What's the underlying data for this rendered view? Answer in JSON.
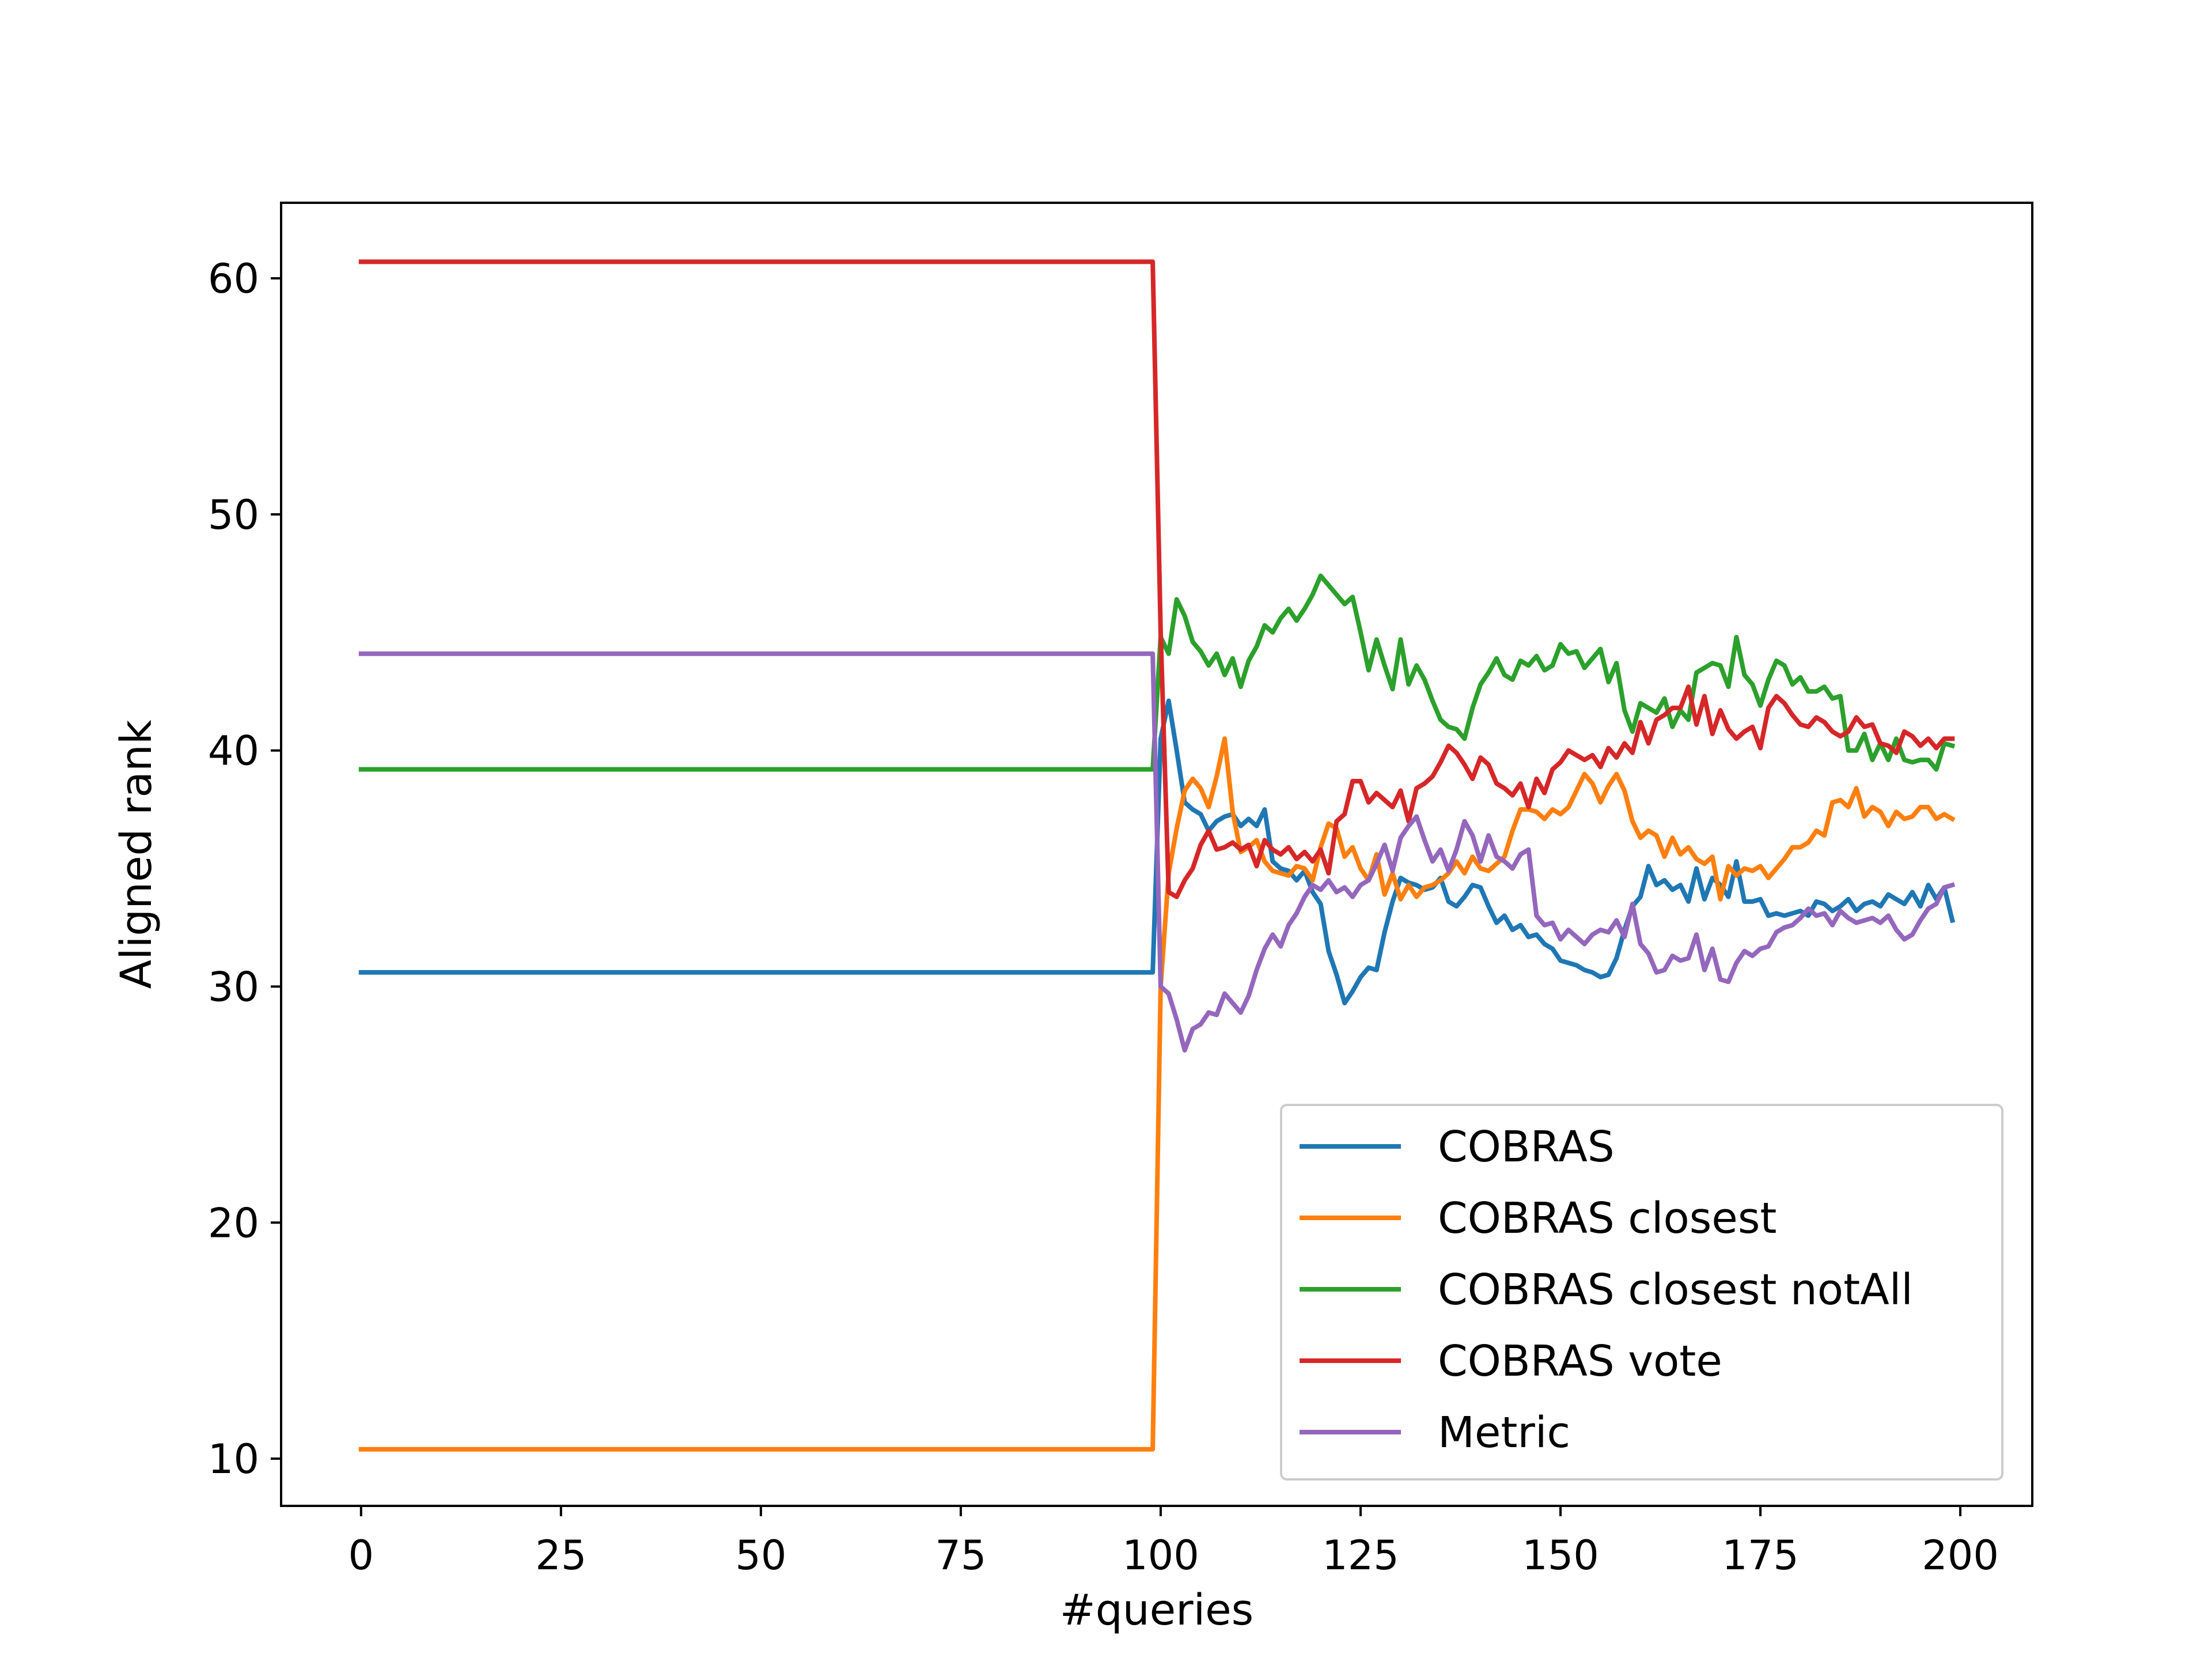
{
  "chart_data": {
    "type": "line",
    "title": "",
    "xlabel": "#queries",
    "ylabel": "Aligned rank",
    "xlim": [
      -10,
      209
    ],
    "ylim": [
      8,
      63.2
    ],
    "xticks": [
      0,
      25,
      50,
      75,
      100,
      125,
      150,
      175,
      200
    ],
    "xtick_labels": [
      "0",
      "25",
      "50",
      "75",
      "100",
      "125",
      "150",
      "175",
      "200"
    ],
    "yticks": [
      10,
      20,
      30,
      40,
      50,
      60
    ],
    "ytick_labels": [
      "10",
      "20",
      "30",
      "40",
      "50",
      "60"
    ],
    "grid": false,
    "legend_position": "lower-right",
    "x": [
      0,
      99,
      100,
      101,
      102,
      103,
      104,
      105,
      106,
      107,
      108,
      109,
      110,
      111,
      112,
      113,
      114,
      115,
      116,
      117,
      118,
      119,
      120,
      121,
      122,
      123,
      124,
      125,
      126,
      127,
      128,
      129,
      130,
      131,
      132,
      133,
      134,
      135,
      136,
      137,
      138,
      139,
      140,
      141,
      142,
      143,
      144,
      145,
      146,
      147,
      148,
      149,
      150,
      151,
      152,
      153,
      154,
      155,
      156,
      157,
      158,
      159,
      160,
      161,
      162,
      163,
      164,
      165,
      166,
      167,
      168,
      169,
      170,
      171,
      172,
      173,
      174,
      175,
      176,
      177,
      178,
      179,
      180,
      181,
      182,
      183,
      184,
      185,
      186,
      187,
      188,
      189,
      190,
      191,
      192,
      193,
      194,
      195,
      196,
      197,
      198,
      199
    ],
    "series": [
      {
        "name": "COBRAS",
        "color": "#1f77b4",
        "values": [
          30.6,
          30.6,
          40.5,
          42.1,
          40.0,
          37.8,
          37.5,
          37.3,
          36.6,
          37.0,
          37.2,
          37.3,
          36.8,
          37.1,
          36.8,
          37.5,
          35.3,
          35.0,
          34.9,
          34.5,
          34.9,
          34.0,
          33.5,
          31.5,
          30.5,
          29.3,
          29.8,
          30.4,
          30.8,
          30.7,
          32.3,
          33.6,
          34.6,
          34.4,
          34.3,
          34.1,
          34.2,
          34.6,
          33.6,
          33.4,
          33.8,
          34.3,
          34.2,
          33.4,
          32.7,
          33.0,
          32.4,
          32.6,
          32.1,
          32.2,
          31.8,
          31.6,
          31.1,
          31.0,
          30.9,
          30.7,
          30.6,
          30.4,
          30.5,
          31.2,
          32.4,
          33.4,
          33.8,
          35.1,
          34.3,
          34.5,
          34.1,
          34.3,
          33.6,
          35.0,
          33.7,
          34.6,
          34.3,
          33.8,
          35.3,
          33.6,
          33.6,
          33.7,
          33.0,
          33.1,
          33.0,
          33.1,
          33.2,
          33.0,
          33.6,
          33.5,
          33.2,
          33.4,
          33.7,
          33.2,
          33.5,
          33.6,
          33.4,
          33.9,
          33.7,
          33.5,
          34.0,
          33.4,
          34.3,
          33.7,
          34.2,
          32.8
        ]
      },
      {
        "name": "COBRAS closest",
        "color": "#ff7f0e",
        "values": [
          10.4,
          10.4,
          30.0,
          34.8,
          36.7,
          38.3,
          38.8,
          38.4,
          37.6,
          38.9,
          40.5,
          37.4,
          35.7,
          35.9,
          36.2,
          35.3,
          34.9,
          34.8,
          34.7,
          35.1,
          35.0,
          34.5,
          35.9,
          36.9,
          36.7,
          35.5,
          35.9,
          35.0,
          34.5,
          35.6,
          33.9,
          34.8,
          33.7,
          34.3,
          33.8,
          34.2,
          34.3,
          34.5,
          34.8,
          35.3,
          34.8,
          35.5,
          35.0,
          34.9,
          35.2,
          35.5,
          36.6,
          37.5,
          37.5,
          37.4,
          37.1,
          37.5,
          37.3,
          37.6,
          38.3,
          39.0,
          38.6,
          37.8,
          38.5,
          39.0,
          38.3,
          37.0,
          36.3,
          36.6,
          36.4,
          35.5,
          36.3,
          35.6,
          35.9,
          35.4,
          35.2,
          35.5,
          33.7,
          35.1,
          34.7,
          35.0,
          34.9,
          35.1,
          34.6,
          35.0,
          35.4,
          35.9,
          35.9,
          36.1,
          36.6,
          36.4,
          37.8,
          37.9,
          37.6,
          38.4,
          37.2,
          37.6,
          37.4,
          36.8,
          37.4,
          37.1,
          37.2,
          37.6,
          37.6,
          37.1,
          37.3,
          37.1
        ]
      },
      {
        "name": "COBRAS closest notAll",
        "color": "#2ca02c",
        "values": [
          39.2,
          39.2,
          44.8,
          44.1,
          46.4,
          45.7,
          44.6,
          44.2,
          43.6,
          44.1,
          43.2,
          43.9,
          42.7,
          43.8,
          44.4,
          45.3,
          45.0,
          45.6,
          46.0,
          45.5,
          46.0,
          46.6,
          47.4,
          47.0,
          46.6,
          46.2,
          46.5,
          45.0,
          43.4,
          44.7,
          43.6,
          42.6,
          44.7,
          42.8,
          43.6,
          43.0,
          42.1,
          41.3,
          41.0,
          40.9,
          40.5,
          41.8,
          42.8,
          43.3,
          43.9,
          43.2,
          43.0,
          43.8,
          43.6,
          44.0,
          43.4,
          43.6,
          44.5,
          44.1,
          44.2,
          43.5,
          43.9,
          44.3,
          42.9,
          43.7,
          41.7,
          40.8,
          42.0,
          41.8,
          41.6,
          42.2,
          41.0,
          41.7,
          41.3,
          43.3,
          43.5,
          43.7,
          43.6,
          42.7,
          44.8,
          43.2,
          42.8,
          41.9,
          43.0,
          43.8,
          43.6,
          42.8,
          43.1,
          42.5,
          42.5,
          42.7,
          42.2,
          42.3,
          40.0,
          40.0,
          40.7,
          39.6,
          40.3,
          39.6,
          40.5,
          39.6,
          39.5,
          39.6,
          39.6,
          39.2,
          40.3,
          40.2
        ]
      },
      {
        "name": "COBRAS vote",
        "color": "#d62728",
        "values": [
          60.7,
          60.7,
          45.0,
          34.0,
          33.8,
          34.5,
          35.0,
          36.0,
          36.6,
          35.8,
          35.9,
          36.1,
          35.8,
          36.0,
          35.1,
          36.2,
          35.8,
          35.6,
          35.9,
          35.4,
          35.7,
          35.3,
          35.8,
          34.8,
          37.0,
          37.3,
          38.7,
          38.7,
          37.8,
          38.2,
          37.9,
          37.6,
          38.3,
          37.0,
          38.4,
          38.6,
          38.9,
          39.5,
          40.2,
          39.9,
          39.4,
          38.8,
          39.7,
          39.4,
          38.6,
          38.4,
          38.1,
          38.6,
          37.6,
          38.8,
          38.2,
          39.2,
          39.5,
          40.0,
          39.8,
          39.6,
          39.8,
          39.3,
          40.1,
          39.7,
          40.3,
          39.9,
          41.2,
          40.3,
          41.3,
          41.5,
          41.8,
          41.8,
          42.7,
          41.1,
          42.3,
          40.7,
          41.7,
          40.9,
          40.5,
          40.8,
          41.0,
          40.1,
          41.8,
          42.3,
          42.0,
          41.5,
          41.1,
          41.0,
          41.4,
          41.2,
          40.8,
          40.6,
          40.8,
          41.4,
          41.0,
          41.1,
          40.3,
          40.2,
          39.9,
          40.8,
          40.6,
          40.2,
          40.5,
          40.1,
          40.5,
          40.5
        ]
      },
      {
        "name": "Metric",
        "color": "#9467bd",
        "values": [
          44.1,
          44.1,
          30.0,
          29.7,
          28.6,
          27.3,
          28.2,
          28.4,
          28.9,
          28.8,
          29.7,
          29.3,
          28.9,
          29.6,
          30.7,
          31.6,
          32.2,
          31.7,
          32.6,
          33.1,
          33.8,
          34.3,
          34.1,
          34.5,
          34.0,
          34.2,
          33.8,
          34.3,
          34.5,
          35.2,
          36.0,
          34.9,
          36.3,
          36.8,
          37.2,
          36.2,
          35.3,
          35.8,
          34.9,
          35.8,
          37.0,
          36.4,
          35.3,
          36.4,
          35.5,
          35.3,
          35.0,
          35.6,
          35.8,
          33.0,
          32.6,
          32.7,
          32.0,
          32.4,
          32.1,
          31.8,
          32.2,
          32.4,
          32.3,
          32.8,
          32.1,
          33.5,
          31.8,
          31.4,
          30.6,
          30.7,
          31.3,
          31.1,
          31.2,
          32.2,
          30.7,
          31.6,
          30.3,
          30.2,
          31.0,
          31.5,
          31.3,
          31.6,
          31.7,
          32.3,
          32.5,
          32.6,
          32.9,
          33.3,
          33.0,
          33.1,
          32.6,
          33.2,
          32.9,
          32.7,
          32.8,
          32.9,
          32.7,
          33.0,
          32.4,
          32.0,
          32.2,
          32.8,
          33.3,
          33.5,
          34.2,
          34.3
        ]
      }
    ]
  }
}
